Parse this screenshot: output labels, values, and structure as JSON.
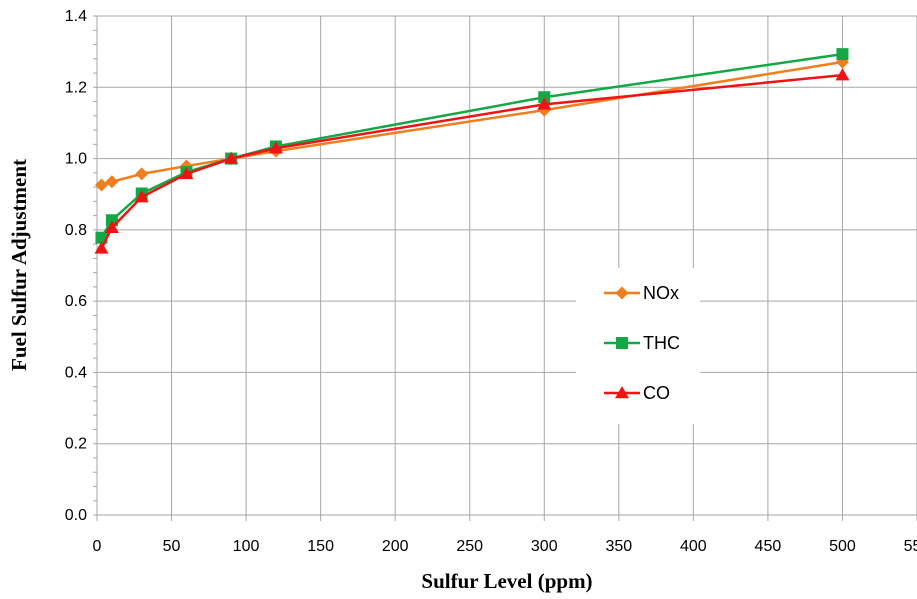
{
  "chart_data": {
    "type": "line",
    "title": "",
    "xlabel": "Sulfur Level (ppm)",
    "ylabel": "Fuel Sulfur Adjustment",
    "xlim": [
      0,
      550
    ],
    "ylim": [
      0,
      1.4
    ],
    "xticks": [
      "0",
      "50",
      "100",
      "150",
      "200",
      "250",
      "300",
      "350",
      "400",
      "450",
      "500",
      "550"
    ],
    "yticks": [
      "0.0",
      "0.2",
      "0.4",
      "0.6",
      "0.8",
      "1.0",
      "1.2",
      "1.4"
    ],
    "grid": true,
    "legend_position": "center-right",
    "series": [
      {
        "name": "NOx",
        "color": "#f07d1e",
        "marker": "diamond",
        "points": [
          [
            3,
            0.926
          ],
          [
            10,
            0.935
          ],
          [
            30,
            0.957
          ],
          [
            60,
            0.979
          ],
          [
            90,
            1.0
          ],
          [
            120,
            1.021
          ],
          [
            300,
            1.136
          ],
          [
            500,
            1.271
          ]
        ]
      },
      {
        "name": "THC",
        "color": "#12a845",
        "marker": "square",
        "points": [
          [
            3,
            0.778
          ],
          [
            10,
            0.827
          ],
          [
            30,
            0.902
          ],
          [
            60,
            0.962
          ],
          [
            90,
            1.0
          ],
          [
            120,
            1.034
          ],
          [
            300,
            1.172
          ],
          [
            500,
            1.293
          ]
        ]
      },
      {
        "name": "CO",
        "color": "#f01313",
        "marker": "triangle",
        "points": [
          [
            3,
            0.748
          ],
          [
            10,
            0.806
          ],
          [
            30,
            0.892
          ],
          [
            60,
            0.957
          ],
          [
            90,
            1.0
          ],
          [
            120,
            1.029
          ],
          [
            300,
            1.152
          ],
          [
            500,
            1.234
          ]
        ]
      }
    ]
  }
}
